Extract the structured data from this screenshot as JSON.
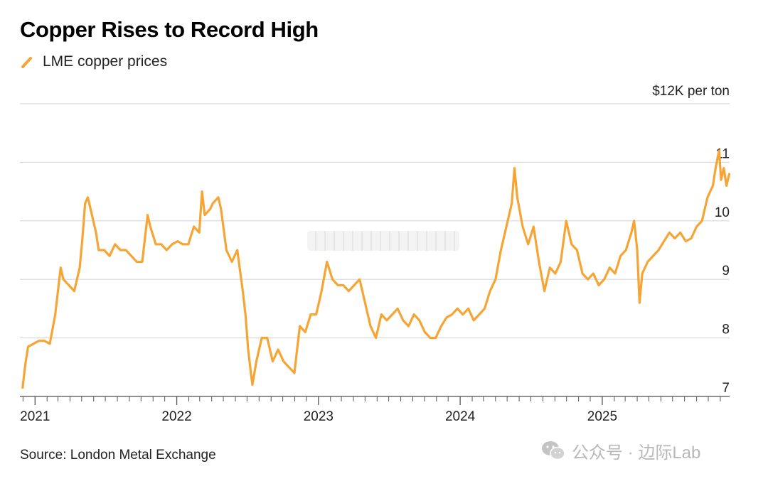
{
  "chart_data": {
    "type": "line",
    "title": "Copper Rises to Record High",
    "source": "Source: London Metal Exchange",
    "unit_label": "$12K per ton",
    "y_ticks": [
      {
        "value": 12,
        "label": ""
      },
      {
        "value": 11,
        "label": "11"
      },
      {
        "value": 10,
        "label": "10"
      },
      {
        "value": 9,
        "label": "9"
      },
      {
        "value": 8,
        "label": "8"
      },
      {
        "value": 7,
        "label": "7"
      }
    ],
    "ylim": [
      6.7,
      12
    ],
    "x_ticks": [
      "2021",
      "2022",
      "2023",
      "2024",
      "2025"
    ],
    "xlim": [
      "2020-11-23",
      "2025-11-25"
    ],
    "grid": true,
    "legend_placement": "top-left",
    "colors": {
      "line": "#f6a535"
    },
    "series": [
      {
        "name": "LME copper prices",
        "points": [
          [
            "2020-11-30",
            7.15
          ],
          [
            "2020-12-07",
            7.55
          ],
          [
            "2020-12-14",
            7.85
          ],
          [
            "2020-12-28",
            7.9
          ],
          [
            "2021-01-11",
            7.95
          ],
          [
            "2021-01-25",
            7.95
          ],
          [
            "2021-02-08",
            7.9
          ],
          [
            "2021-02-15",
            8.15
          ],
          [
            "2021-02-22",
            8.4
          ],
          [
            "2021-03-08",
            9.2
          ],
          [
            "2021-03-15",
            9.0
          ],
          [
            "2021-03-29",
            8.9
          ],
          [
            "2021-04-12",
            8.8
          ],
          [
            "2021-04-26",
            9.2
          ],
          [
            "2021-05-03",
            9.7
          ],
          [
            "2021-05-10",
            10.3
          ],
          [
            "2021-05-17",
            10.4
          ],
          [
            "2021-05-24",
            10.2
          ],
          [
            "2021-06-07",
            9.8
          ],
          [
            "2021-06-14",
            9.5
          ],
          [
            "2021-06-28",
            9.5
          ],
          [
            "2021-07-12",
            9.4
          ],
          [
            "2021-07-26",
            9.6
          ],
          [
            "2021-08-09",
            9.5
          ],
          [
            "2021-08-23",
            9.5
          ],
          [
            "2021-09-06",
            9.4
          ],
          [
            "2021-09-20",
            9.3
          ],
          [
            "2021-10-04",
            9.3
          ],
          [
            "2021-10-18",
            10.1
          ],
          [
            "2021-10-25",
            9.9
          ],
          [
            "2021-11-08",
            9.6
          ],
          [
            "2021-11-22",
            9.6
          ],
          [
            "2021-12-06",
            9.5
          ],
          [
            "2021-12-20",
            9.6
          ],
          [
            "2022-01-03",
            9.65
          ],
          [
            "2022-01-17",
            9.6
          ],
          [
            "2022-01-31",
            9.6
          ],
          [
            "2022-02-14",
            9.9
          ],
          [
            "2022-02-28",
            9.8
          ],
          [
            "2022-03-07",
            10.5
          ],
          [
            "2022-03-14",
            10.1
          ],
          [
            "2022-03-28",
            10.2
          ],
          [
            "2022-04-04",
            10.3
          ],
          [
            "2022-04-18",
            10.4
          ],
          [
            "2022-04-25",
            10.2
          ],
          [
            "2022-05-09",
            9.5
          ],
          [
            "2022-05-23",
            9.3
          ],
          [
            "2022-06-06",
            9.5
          ],
          [
            "2022-06-20",
            8.8
          ],
          [
            "2022-06-27",
            8.4
          ],
          [
            "2022-07-04",
            7.8
          ],
          [
            "2022-07-11",
            7.4
          ],
          [
            "2022-07-15",
            7.2
          ],
          [
            "2022-07-25",
            7.6
          ],
          [
            "2022-08-08",
            8.0
          ],
          [
            "2022-08-22",
            8.0
          ],
          [
            "2022-09-05",
            7.6
          ],
          [
            "2022-09-19",
            7.8
          ],
          [
            "2022-10-03",
            7.6
          ],
          [
            "2022-10-17",
            7.5
          ],
          [
            "2022-10-31",
            7.4
          ],
          [
            "2022-11-14",
            8.2
          ],
          [
            "2022-11-28",
            8.1
          ],
          [
            "2022-12-12",
            8.4
          ],
          [
            "2022-12-26",
            8.4
          ],
          [
            "2023-01-09",
            8.8
          ],
          [
            "2023-01-23",
            9.3
          ],
          [
            "2023-02-06",
            9.0
          ],
          [
            "2023-02-20",
            8.9
          ],
          [
            "2023-03-06",
            8.9
          ],
          [
            "2023-03-20",
            8.8
          ],
          [
            "2023-04-03",
            8.9
          ],
          [
            "2023-04-17",
            9.0
          ],
          [
            "2023-05-01",
            8.6
          ],
          [
            "2023-05-15",
            8.2
          ],
          [
            "2023-05-29",
            8.0
          ],
          [
            "2023-06-12",
            8.4
          ],
          [
            "2023-06-26",
            8.3
          ],
          [
            "2023-07-10",
            8.4
          ],
          [
            "2023-07-24",
            8.5
          ],
          [
            "2023-08-07",
            8.3
          ],
          [
            "2023-08-21",
            8.2
          ],
          [
            "2023-09-04",
            8.4
          ],
          [
            "2023-09-18",
            8.3
          ],
          [
            "2023-10-02",
            8.1
          ],
          [
            "2023-10-16",
            8.0
          ],
          [
            "2023-10-30",
            8.0
          ],
          [
            "2023-11-13",
            8.2
          ],
          [
            "2023-11-27",
            8.35
          ],
          [
            "2023-12-11",
            8.4
          ],
          [
            "2023-12-25",
            8.5
          ],
          [
            "2024-01-08",
            8.4
          ],
          [
            "2024-01-22",
            8.5
          ],
          [
            "2024-02-05",
            8.3
          ],
          [
            "2024-02-19",
            8.4
          ],
          [
            "2024-03-04",
            8.5
          ],
          [
            "2024-03-18",
            8.8
          ],
          [
            "2024-04-01",
            9.0
          ],
          [
            "2024-04-15",
            9.5
          ],
          [
            "2024-04-29",
            9.9
          ],
          [
            "2024-05-13",
            10.3
          ],
          [
            "2024-05-20",
            10.9
          ],
          [
            "2024-05-27",
            10.4
          ],
          [
            "2024-06-10",
            9.9
          ],
          [
            "2024-06-24",
            9.6
          ],
          [
            "2024-07-08",
            9.9
          ],
          [
            "2024-07-22",
            9.3
          ],
          [
            "2024-08-05",
            8.8
          ],
          [
            "2024-08-19",
            9.2
          ],
          [
            "2024-09-02",
            9.1
          ],
          [
            "2024-09-16",
            9.3
          ],
          [
            "2024-09-30",
            10.0
          ],
          [
            "2024-10-14",
            9.6
          ],
          [
            "2024-10-28",
            9.5
          ],
          [
            "2024-11-11",
            9.1
          ],
          [
            "2024-11-25",
            9.0
          ],
          [
            "2024-12-09",
            9.1
          ],
          [
            "2024-12-23",
            8.9
          ],
          [
            "2025-01-06",
            9.0
          ],
          [
            "2025-01-20",
            9.2
          ],
          [
            "2025-02-03",
            9.1
          ],
          [
            "2025-02-17",
            9.4
          ],
          [
            "2025-03-03",
            9.5
          ],
          [
            "2025-03-17",
            9.8
          ],
          [
            "2025-03-24",
            10.0
          ],
          [
            "2025-04-01",
            9.5
          ],
          [
            "2025-04-07",
            8.6
          ],
          [
            "2025-04-14",
            9.1
          ],
          [
            "2025-04-28",
            9.3
          ],
          [
            "2025-05-12",
            9.4
          ],
          [
            "2025-05-26",
            9.5
          ],
          [
            "2025-06-09",
            9.65
          ],
          [
            "2025-06-23",
            9.8
          ],
          [
            "2025-07-07",
            9.7
          ],
          [
            "2025-07-21",
            9.8
          ],
          [
            "2025-08-04",
            9.65
          ],
          [
            "2025-08-18",
            9.7
          ],
          [
            "2025-09-01",
            9.9
          ],
          [
            "2025-09-15",
            10.0
          ],
          [
            "2025-09-29",
            10.4
          ],
          [
            "2025-10-13",
            10.6
          ],
          [
            "2025-10-20",
            10.9
          ],
          [
            "2025-10-29",
            11.2
          ],
          [
            "2025-11-03",
            10.7
          ],
          [
            "2025-11-10",
            10.9
          ],
          [
            "2025-11-17",
            10.6
          ],
          [
            "2025-11-24",
            10.8
          ]
        ]
      }
    ]
  },
  "watermark": {
    "icon": "wechat-icon",
    "text": "公众号 · 边际Lab"
  }
}
